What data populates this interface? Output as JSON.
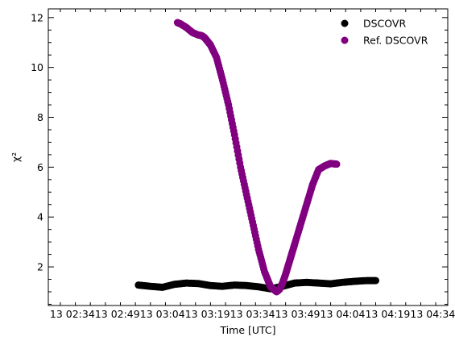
{
  "chart_data": {
    "type": "scatter",
    "title": "",
    "xlabel": "Time [UTC]",
    "ylabel": "χ²",
    "xlim": [
      "13 02:26",
      "13 04:39"
    ],
    "ylim": [
      0.45,
      12.35
    ],
    "x_tick_labels": [
      "13 02:34",
      "13 02:49",
      "13 03:04",
      "13 03:19",
      "13 03:34",
      "13 03:49",
      "13 04:04",
      "13 04:19",
      "13 04:34"
    ],
    "y_ticks": [
      2,
      4,
      6,
      8,
      10,
      12
    ],
    "legend_position": "top-right",
    "grid": false,
    "series": [
      {
        "name": "DSCOVR",
        "color": "#000000",
        "x": [
          "13 02:56",
          "13 03:00",
          "13 03:04",
          "13 03:08",
          "13 03:12",
          "13 03:16",
          "13 03:20",
          "13 03:24",
          "13 03:28",
          "13 03:32",
          "13 03:36",
          "13 03:40",
          "13 03:44",
          "13 03:48",
          "13 03:52",
          "13 03:56",
          "13 04:00",
          "13 04:04",
          "13 04:08",
          "13 04:12",
          "13 04:15"
        ],
        "y": [
          1.27,
          1.22,
          1.18,
          1.3,
          1.35,
          1.33,
          1.25,
          1.22,
          1.27,
          1.25,
          1.2,
          1.12,
          1.22,
          1.35,
          1.38,
          1.35,
          1.32,
          1.38,
          1.42,
          1.45,
          1.45
        ]
      },
      {
        "name": "Ref. DSCOVR",
        "color": "#800080",
        "x": [
          "13 03:09",
          "13 03:10",
          "13 03:12",
          "13 03:14",
          "13 03:16",
          "13 03:17",
          "13 03:18",
          "13 03:19",
          "13 03:20",
          "13 03:22",
          "13 03:24",
          "13 03:26",
          "13 03:28",
          "13 03:30",
          "13 03:32",
          "13 03:34",
          "13 03:36",
          "13 03:38",
          "13 03:40",
          "13 03:42",
          "13 03:43",
          "13 03:44",
          "13 03:45",
          "13 03:46",
          "13 03:47",
          "13 03:48",
          "13 03:50",
          "13 03:52",
          "13 03:54",
          "13 03:56",
          "13 03:58",
          "13 04:00",
          "13 04:02"
        ],
        "y": [
          11.8,
          11.75,
          11.6,
          11.4,
          11.3,
          11.28,
          11.2,
          11.05,
          10.9,
          10.4,
          9.5,
          8.5,
          7.3,
          6.0,
          4.9,
          3.8,
          2.7,
          1.8,
          1.2,
          1.0,
          1.1,
          1.35,
          1.7,
          2.1,
          2.5,
          2.9,
          3.7,
          4.5,
          5.3,
          5.9,
          6.05,
          6.15,
          6.12
        ]
      }
    ]
  }
}
